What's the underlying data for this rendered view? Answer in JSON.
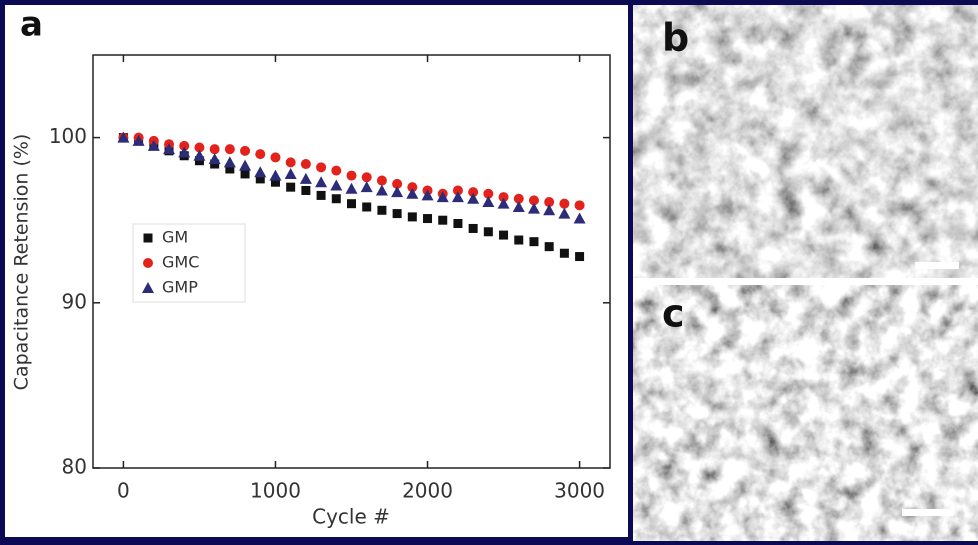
{
  "chart_data": {
    "type": "scatter",
    "panel_label": "a",
    "x_label": "Cycle #",
    "y_label": "Capacitance Retension (%)",
    "x": [
      0,
      100,
      200,
      300,
      400,
      500,
      600,
      700,
      800,
      900,
      1000,
      1100,
      1200,
      1300,
      1400,
      1500,
      1600,
      1700,
      1800,
      1900,
      2000,
      2100,
      2200,
      2300,
      2400,
      2500,
      2600,
      2700,
      2800,
      2900,
      3000
    ],
    "series": [
      {
        "name": "GM",
        "color": "#111111",
        "marker": "square",
        "values": [
          100,
          99.8,
          99.5,
          99.2,
          98.9,
          98.6,
          98.4,
          98.1,
          97.8,
          97.5,
          97.3,
          97.0,
          96.8,
          96.5,
          96.3,
          96.0,
          95.8,
          95.6,
          95.4,
          95.2,
          95.1,
          95.0,
          94.8,
          94.5,
          94.3,
          94.1,
          93.8,
          93.7,
          93.4,
          93.0,
          92.8
        ]
      },
      {
        "name": "GMC",
        "color": "#e3221c",
        "marker": "circle",
        "values": [
          100,
          100,
          99.8,
          99.6,
          99.5,
          99.4,
          99.3,
          99.3,
          99.2,
          99.0,
          98.8,
          98.5,
          98.4,
          98.2,
          98.0,
          97.7,
          97.6,
          97.4,
          97.2,
          97.0,
          96.8,
          96.6,
          96.8,
          96.7,
          96.6,
          96.4,
          96.3,
          96.2,
          96.1,
          96.0,
          95.9
        ]
      },
      {
        "name": "GMP",
        "color": "#2c2c78",
        "marker": "triangle",
        "values": [
          100,
          99.8,
          99.5,
          99.3,
          99.1,
          98.9,
          98.7,
          98.5,
          98.3,
          97.9,
          97.7,
          97.8,
          97.5,
          97.3,
          97.1,
          96.9,
          97.0,
          96.8,
          96.7,
          96.6,
          96.5,
          96.4,
          96.4,
          96.3,
          96.1,
          96.0,
          95.8,
          95.7,
          95.6,
          95.4,
          95.1
        ]
      }
    ],
    "xlim": [
      -200,
      3200
    ],
    "xticks": [
      0,
      1000,
      2000,
      3000
    ],
    "ylim": [
      80,
      105
    ],
    "yticks": [
      80,
      90,
      100
    ],
    "legend": "center left"
  },
  "images": [
    {
      "label": "b"
    },
    {
      "label": "c"
    }
  ]
}
